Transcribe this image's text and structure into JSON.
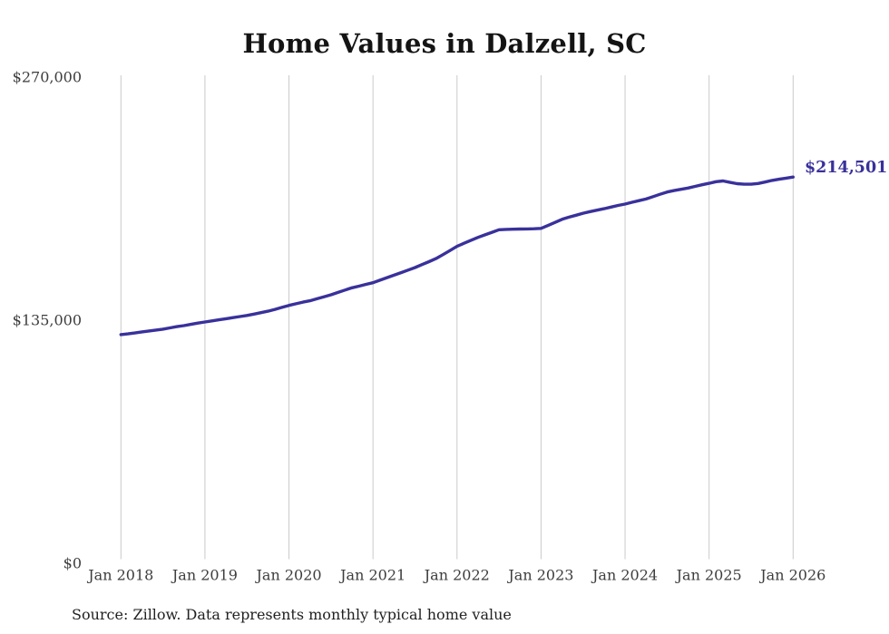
{
  "chart_data": {
    "type": "line",
    "title": "Home Values in Dalzell, SC",
    "xlabel": "",
    "ylabel": "",
    "frequency": "monthly",
    "x_start": "Jan 2018",
    "x_end": "Jan 2026",
    "x_tick_labels": [
      "Jan 2018",
      "Jan 2019",
      "Jan 2020",
      "Jan 2021",
      "Jan 2022",
      "Jan 2023",
      "Jan 2024",
      "Jan 2025",
      "Jan 2026"
    ],
    "y_ticks": [
      {
        "label": "$0",
        "value": 0
      },
      {
        "label": "$135,000",
        "value": 135000
      },
      {
        "label": "$270,000",
        "value": 270000
      }
    ],
    "ylim": [
      0,
      270000
    ],
    "grid": "vertical-only",
    "grid_color": "#cacaca",
    "legend": "none",
    "series": [
      {
        "name": "Typical home value",
        "color": "#39319b",
        "end_label": "$214,501",
        "final_value": 214501,
        "values": [
          127000,
          127400,
          127900,
          128500,
          129000,
          129500,
          130000,
          130700,
          131400,
          132000,
          132700,
          133400,
          134000,
          134600,
          135200,
          135800,
          136400,
          137000,
          137600,
          138400,
          139200,
          140000,
          141000,
          142100,
          143200,
          144100,
          145000,
          145800,
          146900,
          148000,
          149100,
          150400,
          151700,
          153000,
          153900,
          154900,
          155800,
          157200,
          158600,
          160000,
          161400,
          162800,
          164200,
          165900,
          167500,
          169200,
          171400,
          173700,
          176000,
          177700,
          179400,
          181000,
          182400,
          183800,
          185200,
          185400,
          185500,
          185600,
          185700,
          185800,
          186000,
          187600,
          189300,
          191000,
          192200,
          193300,
          194400,
          195300,
          196100,
          196900,
          197800,
          198700,
          199500,
          200500,
          201400,
          202300,
          203600,
          204900,
          206200,
          207000,
          207700,
          208400,
          209300,
          210200,
          211000,
          211900,
          212300,
          211500,
          210800,
          210500,
          210500,
          210900,
          211700,
          212600,
          213300,
          213900,
          214501
        ]
      }
    ],
    "source_note": "Source: Zillow. Data represents monthly typical home value"
  }
}
